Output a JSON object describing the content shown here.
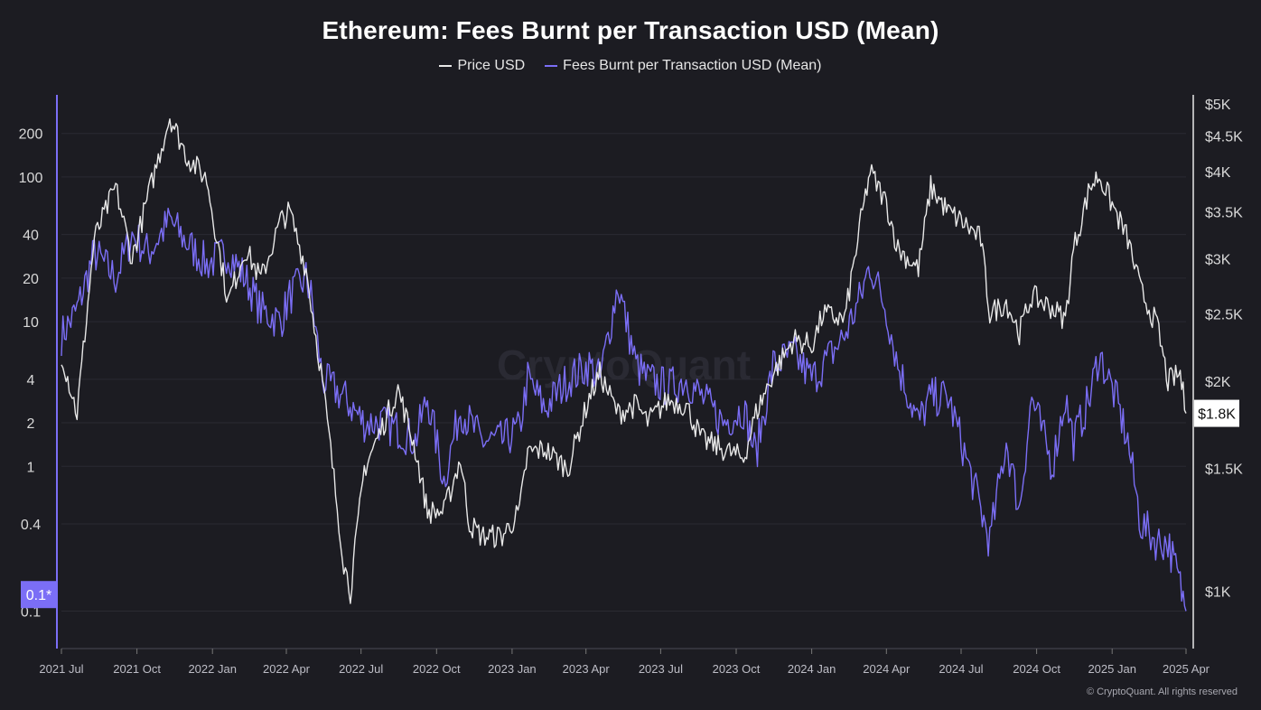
{
  "chart_data": {
    "type": "line",
    "title": "Ethereum: Fees Burnt per Transaction USD (Mean)",
    "watermark": "CryptoQuant",
    "series": [
      {
        "name": "Price USD",
        "axis": "right",
        "color": "#e8e8e8",
        "dates": [
          "2021-07-01",
          "2021-07-20",
          "2021-08-10",
          "2021-09-05",
          "2021-09-25",
          "2021-10-15",
          "2021-11-10",
          "2021-12-01",
          "2021-12-25",
          "2022-01-20",
          "2022-02-10",
          "2022-03-01",
          "2022-03-25",
          "2022-04-05",
          "2022-04-25",
          "2022-05-15",
          "2022-06-10",
          "2022-06-18",
          "2022-07-05",
          "2022-07-25",
          "2022-08-15",
          "2022-09-05",
          "2022-09-20",
          "2022-10-10",
          "2022-10-30",
          "2022-11-10",
          "2022-11-25",
          "2022-12-20",
          "2023-01-10",
          "2023-01-20",
          "2023-02-10",
          "2023-03-10",
          "2023-04-05",
          "2023-04-18",
          "2023-05-10",
          "2023-06-01",
          "2023-06-15",
          "2023-07-10",
          "2023-08-01",
          "2023-08-20",
          "2023-09-15",
          "2023-10-10",
          "2023-10-25",
          "2023-11-15",
          "2023-12-10",
          "2024-01-01",
          "2024-01-15",
          "2024-02-10",
          "2024-03-01",
          "2024-03-12",
          "2024-04-01",
          "2024-04-15",
          "2024-05-10",
          "2024-05-25",
          "2024-06-15",
          "2024-07-01",
          "2024-07-25",
          "2024-08-05",
          "2024-08-25",
          "2024-09-10",
          "2024-09-25",
          "2024-10-20",
          "2024-11-05",
          "2024-11-15",
          "2024-12-05",
          "2024-12-16",
          "2025-01-05",
          "2025-01-20",
          "2025-02-05",
          "2025-02-25",
          "2025-03-10",
          "2025-03-25",
          "2025-04-01"
        ],
        "values": [
          2200,
          1800,
          3200,
          3800,
          3000,
          3700,
          4800,
          4200,
          3900,
          2600,
          3100,
          2800,
          3400,
          3500,
          2900,
          2000,
          1100,
          1000,
          1500,
          1700,
          1950,
          1600,
          1300,
          1300,
          1550,
          1250,
          1200,
          1200,
          1300,
          1580,
          1600,
          1500,
          1900,
          2050,
          1800,
          1850,
          1750,
          1880,
          1850,
          1650,
          1600,
          1550,
          1800,
          2050,
          2300,
          2250,
          2500,
          2450,
          3400,
          4000,
          3600,
          3100,
          2900,
          3800,
          3500,
          3400,
          3200,
          2500,
          2600,
          2350,
          2650,
          2550,
          2450,
          3100,
          3800,
          3950,
          3500,
          3200,
          2700,
          2400,
          2000,
          2050,
          1800
        ]
      },
      {
        "name": "Fees Burnt per Transaction USD (Mean)",
        "axis": "left",
        "color": "#7b6ef6",
        "dates": [
          "2021-07-01",
          "2021-07-20",
          "2021-08-10",
          "2021-09-05",
          "2021-09-25",
          "2021-10-15",
          "2021-11-10",
          "2021-12-01",
          "2021-12-25",
          "2022-01-20",
          "2022-02-10",
          "2022-03-01",
          "2022-03-25",
          "2022-04-05",
          "2022-04-25",
          "2022-05-01",
          "2022-05-15",
          "2022-06-10",
          "2022-07-05",
          "2022-07-25",
          "2022-08-15",
          "2022-09-05",
          "2022-09-20",
          "2022-10-10",
          "2022-10-30",
          "2022-11-10",
          "2022-11-25",
          "2022-12-20",
          "2023-01-10",
          "2023-01-20",
          "2023-02-10",
          "2023-03-10",
          "2023-04-05",
          "2023-04-18",
          "2023-05-10",
          "2023-06-01",
          "2023-06-15",
          "2023-07-10",
          "2023-08-01",
          "2023-08-20",
          "2023-09-15",
          "2023-10-10",
          "2023-10-25",
          "2023-11-15",
          "2023-12-10",
          "2024-01-01",
          "2024-01-15",
          "2024-02-10",
          "2024-03-01",
          "2024-03-12",
          "2024-04-01",
          "2024-04-15",
          "2024-05-10",
          "2024-05-25",
          "2024-06-15",
          "2024-07-01",
          "2024-07-25",
          "2024-08-05",
          "2024-08-25",
          "2024-09-10",
          "2024-09-25",
          "2024-10-20",
          "2024-11-05",
          "2024-11-15",
          "2024-12-05",
          "2024-12-16",
          "2025-01-05",
          "2025-01-20",
          "2025-02-05",
          "2025-02-25",
          "2025-03-10",
          "2025-03-25",
          "2025-04-01"
        ],
        "values": [
          8,
          12,
          30,
          20,
          40,
          30,
          50,
          35,
          25,
          30,
          20,
          12,
          10,
          15,
          20,
          15,
          4,
          3,
          2,
          2,
          1.8,
          1.5,
          3,
          0.8,
          2.5,
          2,
          1.5,
          1.5,
          1.8,
          4,
          2.5,
          4,
          5,
          4,
          18,
          5,
          4,
          3.5,
          4,
          3,
          2,
          2.5,
          1.2,
          5,
          6,
          4,
          5,
          8,
          15,
          25,
          12,
          5,
          2,
          3,
          3,
          1.5,
          0.5,
          0.3,
          1.5,
          0.5,
          3,
          1,
          3,
          1.5,
          3,
          6,
          3,
          1.5,
          0.4,
          0.3,
          0.3,
          0.15,
          0.1
        ]
      }
    ],
    "y_left": {
      "scale": "log",
      "ticks": [
        200,
        100,
        40,
        20,
        10,
        4,
        2,
        1,
        0.4,
        0.1
      ],
      "tick_labels": [
        "200",
        "100",
        "40",
        "20",
        "10",
        "4",
        "2",
        "1",
        "0.4",
        "0.1"
      ],
      "range": [
        0.06,
        320
      ]
    },
    "y_right": {
      "scale": "log",
      "ticks": [
        5000,
        4500,
        4000,
        3500,
        3000,
        2500,
        2000,
        1500,
        1000
      ],
      "tick_labels": [
        "$5K",
        "$4.5K",
        "$4K",
        "$3.5K",
        "$3K",
        "$2.5K",
        "$2K",
        "$1.5K",
        "$1K"
      ],
      "range": [
        900,
        5000
      ]
    },
    "x_ticks": [
      {
        "date": "2021-07-01",
        "label": "2021 Jul"
      },
      {
        "date": "2021-10-01",
        "label": "2021 Oct"
      },
      {
        "date": "2022-01-01",
        "label": "2022 Jan"
      },
      {
        "date": "2022-04-01",
        "label": "2022 Apr"
      },
      {
        "date": "2022-07-01",
        "label": "2022 Jul"
      },
      {
        "date": "2022-10-01",
        "label": "2022 Oct"
      },
      {
        "date": "2023-01-01",
        "label": "2023 Jan"
      },
      {
        "date": "2023-04-01",
        "label": "2023 Apr"
      },
      {
        "date": "2023-07-01",
        "label": "2023 Jul"
      },
      {
        "date": "2023-10-01",
        "label": "2023 Oct"
      },
      {
        "date": "2024-01-01",
        "label": "2024 Jan"
      },
      {
        "date": "2024-04-01",
        "label": "2024 Apr"
      },
      {
        "date": "2024-07-01",
        "label": "2024 Jul"
      },
      {
        "date": "2024-10-01",
        "label": "2024 Oct"
      },
      {
        "date": "2025-01-01",
        "label": "2025 Jan"
      },
      {
        "date": "2025-04-01",
        "label": "2025 Apr"
      }
    ],
    "current_left_label": "0.1*",
    "current_left_value": 0.13,
    "current_right_label": "$1.8K",
    "current_right_value": 1800,
    "grid": true
  },
  "legend": {
    "items": [
      {
        "label": "Price USD",
        "color": "#e8e8e8"
      },
      {
        "label": "Fees Burnt per Transaction USD (Mean)",
        "color": "#7b6ef6"
      }
    ]
  },
  "footer": {
    "copyright": "© CryptoQuant. All rights reserved"
  }
}
